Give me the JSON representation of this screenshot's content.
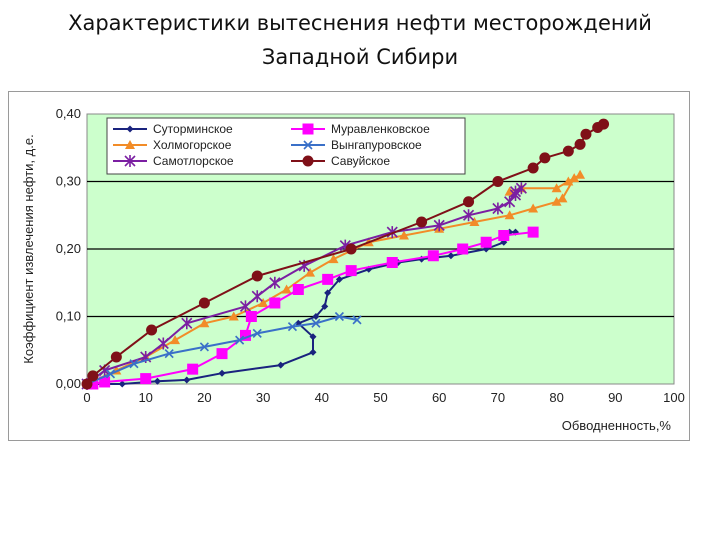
{
  "title_line1": "Характеристики вытеснения нефти месторождений",
  "title_line2": "Западной Сибири",
  "chart_data": {
    "type": "line",
    "xlabel": "Обводненность,%",
    "ylabel": "Коэффициент извлечения нефти, д.е.",
    "xlim": [
      0,
      100
    ],
    "ylim": [
      0,
      0.4
    ],
    "x_ticks": [
      "0",
      "10",
      "20",
      "30",
      "40",
      "50",
      "60",
      "70",
      "80",
      "90",
      "100"
    ],
    "y_ticks": [
      "0,00",
      "0,10",
      "0,20",
      "0,30",
      "0,40"
    ],
    "grid": "horizontal",
    "legend_position": "top-left",
    "series": [
      {
        "name": "Суторминское",
        "color": "#1a237e",
        "marker": "diamond",
        "points": [
          [
            0,
            0.0
          ],
          [
            6,
            0.0
          ],
          [
            12,
            0.004
          ],
          [
            17,
            0.006
          ],
          [
            23,
            0.016
          ],
          [
            33,
            0.028
          ],
          [
            38.5,
            0.047
          ],
          [
            38.5,
            0.07
          ],
          [
            36,
            0.09
          ],
          [
            39,
            0.1
          ],
          [
            40.5,
            0.115
          ],
          [
            41,
            0.135
          ],
          [
            43,
            0.155
          ],
          [
            48,
            0.17
          ],
          [
            53,
            0.18
          ],
          [
            57,
            0.185
          ],
          [
            62,
            0.19
          ],
          [
            68,
            0.2
          ],
          [
            71,
            0.21
          ],
          [
            72,
            0.225
          ],
          [
            73,
            0.225
          ]
        ]
      },
      {
        "name": "Холмогорское",
        "color": "#f28c28",
        "marker": "triangle",
        "points": [
          [
            0,
            0.0
          ],
          [
            5,
            0.02
          ],
          [
            10,
            0.04
          ],
          [
            15,
            0.065
          ],
          [
            20,
            0.09
          ],
          [
            25,
            0.1
          ],
          [
            30,
            0.12
          ],
          [
            34,
            0.14
          ],
          [
            38,
            0.165
          ],
          [
            42,
            0.185
          ],
          [
            48,
            0.21
          ],
          [
            54,
            0.22
          ],
          [
            60,
            0.23
          ],
          [
            66,
            0.24
          ],
          [
            72,
            0.25
          ],
          [
            76,
            0.26
          ],
          [
            80,
            0.27
          ],
          [
            81,
            0.275
          ],
          [
            83,
            0.305
          ],
          [
            84,
            0.31
          ],
          [
            82,
            0.3
          ],
          [
            80,
            0.29
          ],
          [
            74,
            0.29
          ],
          [
            72,
            0.285
          ]
        ]
      },
      {
        "name": "Самотлорское",
        "color": "#7b1fa2",
        "marker": "star",
        "points": [
          [
            0,
            0.0
          ],
          [
            3,
            0.02
          ],
          [
            10,
            0.04
          ],
          [
            13,
            0.06
          ],
          [
            17,
            0.09
          ],
          [
            27,
            0.115
          ],
          [
            29,
            0.13
          ],
          [
            32,
            0.15
          ],
          [
            37,
            0.175
          ],
          [
            44,
            0.205
          ],
          [
            52,
            0.225
          ],
          [
            60,
            0.235
          ],
          [
            65,
            0.25
          ],
          [
            70,
            0.26
          ],
          [
            72,
            0.27
          ],
          [
            73,
            0.285
          ],
          [
            74,
            0.29
          ],
          [
            73,
            0.28
          ]
        ]
      },
      {
        "name": "Муравленковское",
        "color": "#ff00ff",
        "marker": "square",
        "points": [
          [
            1,
            0.0
          ],
          [
            3,
            0.003
          ],
          [
            10,
            0.008
          ],
          [
            18,
            0.022
          ],
          [
            23,
            0.045
          ],
          [
            27,
            0.072
          ],
          [
            28,
            0.1
          ],
          [
            32,
            0.12
          ],
          [
            36,
            0.14
          ],
          [
            41,
            0.155
          ],
          [
            45,
            0.168
          ],
          [
            52,
            0.18
          ],
          [
            59,
            0.19
          ],
          [
            64,
            0.2
          ],
          [
            68,
            0.21
          ],
          [
            71,
            0.22
          ],
          [
            76,
            0.225
          ]
        ]
      },
      {
        "name": "Вынгапуровское",
        "color": "#3a70c8",
        "marker": "x",
        "points": [
          [
            0,
            0.0
          ],
          [
            4,
            0.015
          ],
          [
            8,
            0.03
          ],
          [
            14,
            0.045
          ],
          [
            20,
            0.055
          ],
          [
            26,
            0.065
          ],
          [
            29,
            0.075
          ],
          [
            35,
            0.085
          ],
          [
            39,
            0.09
          ],
          [
            43,
            0.1
          ],
          [
            46,
            0.095
          ]
        ]
      },
      {
        "name": "Савуйское",
        "color": "#7f1018",
        "marker": "circle",
        "points": [
          [
            0,
            0.0
          ],
          [
            1,
            0.012
          ],
          [
            5,
            0.04
          ],
          [
            11,
            0.08
          ],
          [
            20,
            0.12
          ],
          [
            29,
            0.16
          ],
          [
            45,
            0.2
          ],
          [
            57,
            0.24
          ],
          [
            65,
            0.27
          ],
          [
            70,
            0.3
          ],
          [
            76,
            0.32
          ],
          [
            78,
            0.335
          ],
          [
            82,
            0.345
          ],
          [
            84,
            0.355
          ],
          [
            85,
            0.37
          ],
          [
            87,
            0.38
          ],
          [
            88,
            0.385
          ]
        ]
      }
    ]
  }
}
